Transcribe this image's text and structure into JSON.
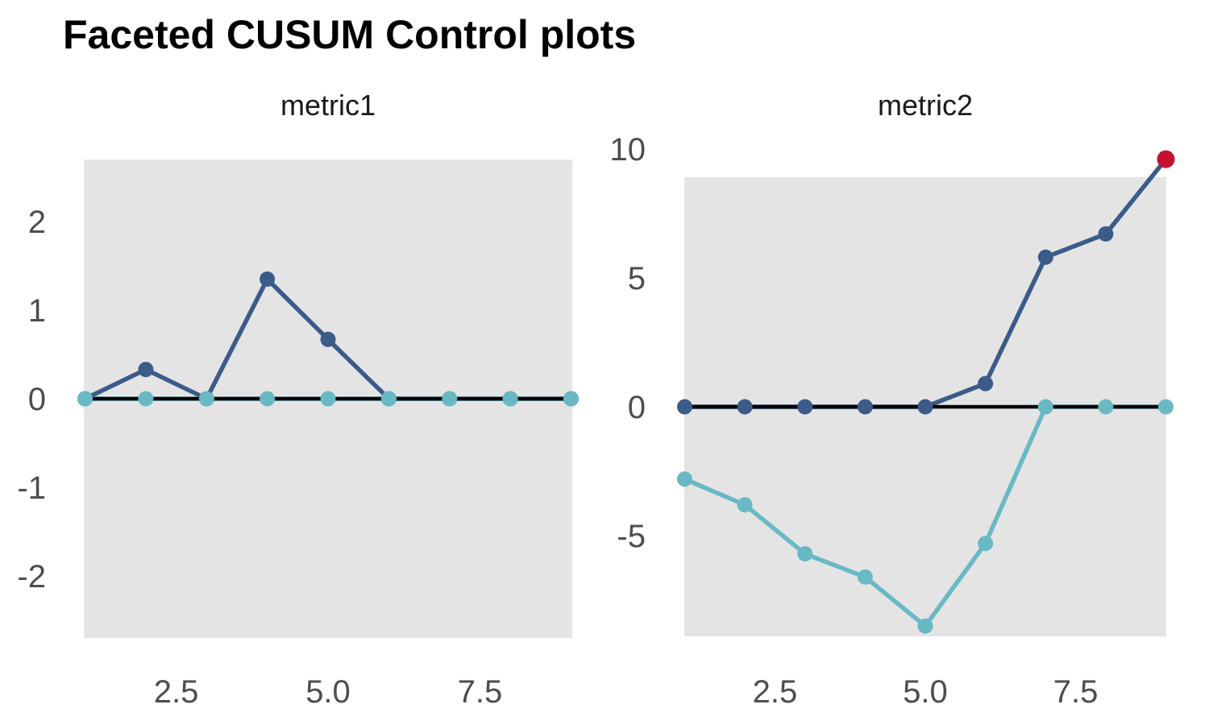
{
  "figure": {
    "title": "Faceted CUSUM Control plots"
  },
  "colors": {
    "cusum_high": "#3b5b89",
    "cusum_low": "#69b9c5",
    "violation": "#c5122f",
    "center_line": "#000000",
    "panel_background": "#e4e4e4",
    "axis_text": "#4d4d4d",
    "strip_text": "#1a1a1a",
    "title_text": "#000000"
  },
  "chart_data": [
    {
      "type": "line",
      "facet_label": "metric1",
      "x": [
        1,
        2,
        3,
        4,
        5,
        6,
        7,
        8,
        9
      ],
      "series": [
        {
          "name": "cusum_high",
          "values": [
            0,
            0.33,
            0,
            1.35,
            0.67,
            0,
            0,
            0,
            0
          ]
        },
        {
          "name": "cusum_low",
          "values": [
            0,
            0,
            0,
            0,
            0,
            0,
            0,
            0,
            0
          ]
        }
      ],
      "center_line_value": 0,
      "violation_points": [],
      "xlim": [
        1,
        9
      ],
      "ylim": [
        -2.7,
        2.7
      ],
      "x_tick_values": [
        2.5,
        5.0,
        7.5
      ],
      "x_tick_labels": [
        "2.5",
        "5.0",
        "7.5"
      ],
      "y_tick_values": [
        2,
        1,
        0,
        -1,
        -2
      ],
      "y_tick_labels": [
        "2",
        "1",
        "0",
        "-1",
        "-2"
      ],
      "grid": "off",
      "legend": "none"
    },
    {
      "type": "line",
      "facet_label": "metric2",
      "x": [
        1,
        2,
        3,
        4,
        5,
        6,
        7,
        8,
        9
      ],
      "series": [
        {
          "name": "cusum_high",
          "values": [
            0,
            0,
            0,
            0,
            0,
            0.9,
            5.8,
            6.7,
            9.6
          ]
        },
        {
          "name": "cusum_low",
          "values": [
            -2.8,
            -3.8,
            -5.7,
            -6.6,
            -8.5,
            -5.3,
            0,
            0,
            0
          ]
        }
      ],
      "center_line_value": 0,
      "violation_points": [
        {
          "series": "cusum_high",
          "x": 9,
          "y": 9.6
        }
      ],
      "xlim": [
        1,
        9
      ],
      "ylim": [
        -8.9,
        8.9
      ],
      "x_tick_values": [
        2.5,
        5.0,
        7.5
      ],
      "x_tick_labels": [
        "2.5",
        "5.0",
        "7.5"
      ],
      "y_tick_values": [
        10,
        5,
        0,
        -5
      ],
      "y_tick_labels": [
        "10",
        "5",
        "0",
        "-5"
      ],
      "grid": "off",
      "legend": "none"
    }
  ]
}
